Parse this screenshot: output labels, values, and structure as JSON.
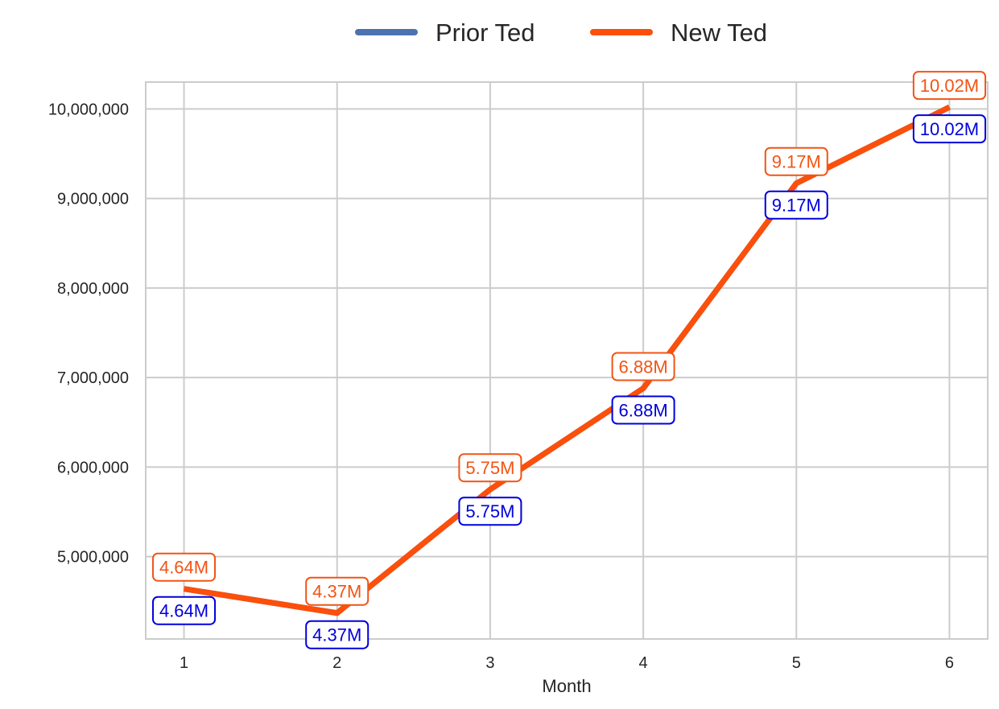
{
  "chart_data": {
    "type": "line",
    "title": "",
    "xlabel": "Month",
    "ylabel": "",
    "x": [
      1,
      2,
      3,
      4,
      5,
      6
    ],
    "x_tick_labels": [
      "1",
      "2",
      "3",
      "4",
      "5",
      "6"
    ],
    "y_ticks": [
      5000000,
      6000000,
      7000000,
      8000000,
      9000000,
      10000000
    ],
    "y_tick_labels": [
      "5,000,000",
      "6,000,000",
      "7,000,000",
      "8,000,000",
      "9,000,000",
      "10,000,000"
    ],
    "xlim": [
      0.75,
      6.25
    ],
    "ylim": [
      4080000,
      10300000
    ],
    "grid": true,
    "legend": "top-center",
    "series": [
      {
        "name": "Prior Ted",
        "color": "#4c72b0",
        "label_color": "#0000dd",
        "values": [
          4640000,
          4370000,
          5750000,
          6880000,
          9170000,
          10020000
        ],
        "data_labels": [
          "4.64M",
          "4.37M",
          "5.75M",
          "6.88M",
          "9.17M",
          "10.02M"
        ],
        "label_position": "below"
      },
      {
        "name": "New Ted",
        "color": "#fc4f0a",
        "label_color": "#f25414",
        "values": [
          4640000,
          4370000,
          5750000,
          6880000,
          9170000,
          10020000
        ],
        "data_labels": [
          "4.64M",
          "4.37M",
          "5.75M",
          "6.88M",
          "9.17M",
          "10.02M"
        ],
        "label_position": "above"
      }
    ]
  }
}
